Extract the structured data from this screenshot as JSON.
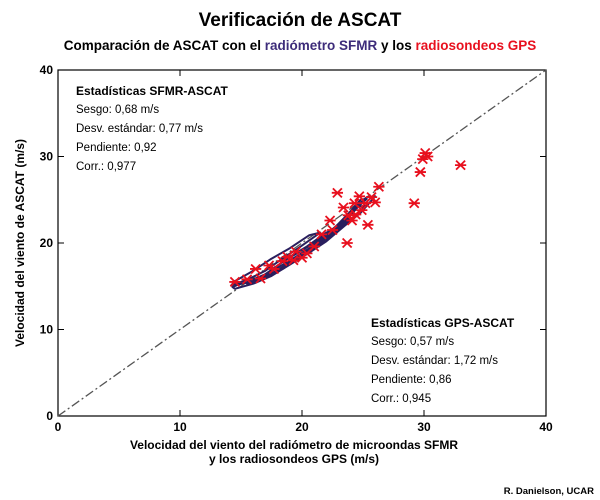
{
  "header": {
    "title": "Verificación de ASCAT",
    "subtitle_part1": "Comparación de ASCAT con el ",
    "subtitle_part2": "radiómetro SFMR",
    "subtitle_part3": " y los ",
    "subtitle_part4": "radiosondeos GPS",
    "color_part2": "#3d2c7a",
    "color_part4": "#e8101e"
  },
  "credit": "R. Danielson, UCAR",
  "stats_sfmr": {
    "title": "Estadísticas SFMR-ASCAT",
    "lines": [
      "Sesgo: 0,68 m/s",
      "Desv. estándar: 0,77 m/s",
      "Pendiente: 0,92",
      "Corr.: 0,977"
    ]
  },
  "stats_gps": {
    "title": "Estadísticas GPS-ASCAT",
    "lines": [
      "Sesgo: 0,57 m/s",
      "Desv. estándar: 1,72 m/s",
      "Pendiente: 0,86",
      "Corr.: 0,945"
    ]
  },
  "chart_data": {
    "type": "scatter",
    "xlabel_line1": "Velocidad del viento del radiómetro de microondas SFMR",
    "xlabel_line2": "y los radiosondeos GPS (m/s)",
    "ylabel": "Velocidad del viento de ASCAT (m/s)",
    "xlim": [
      0,
      40
    ],
    "ylim": [
      0,
      40
    ],
    "xticks": [
      0,
      10,
      20,
      30,
      40
    ],
    "yticks": [
      0,
      10,
      20,
      30,
      40
    ],
    "grid": false,
    "reference_line": {
      "x": [
        0,
        40
      ],
      "y": [
        0,
        40
      ],
      "style": "dash-dot",
      "color": "#555555"
    },
    "series": [
      {
        "marker": "contour",
        "color": "#2a1f5e",
        "contours": [
          [
            [
              14.5,
              14.7
            ],
            [
              16,
              15.3
            ],
            [
              17.5,
              16.2
            ],
            [
              19,
              17.5
            ],
            [
              20.5,
              18.8
            ],
            [
              22,
              20.2
            ],
            [
              23.5,
              22
            ],
            [
              24.8,
              23.5
            ],
            [
              25.5,
              24.6
            ],
            [
              26,
              25.4
            ],
            [
              25.3,
              25.3
            ],
            [
              24,
              23.6
            ],
            [
              22.6,
              21.4
            ],
            [
              21,
              19.6
            ],
            [
              19.4,
              18.1
            ],
            [
              17.8,
              16.7
            ],
            [
              16.2,
              15.7
            ],
            [
              14.8,
              15.2
            ],
            [
              14.3,
              14.9
            ]
          ],
          [
            [
              15.5,
              15.3
            ],
            [
              17,
              15.9
            ],
            [
              18.6,
              17.3
            ],
            [
              20.2,
              18.8
            ],
            [
              21.8,
              20.3
            ],
            [
              23.2,
              21.8
            ],
            [
              24.4,
              23.2
            ],
            [
              25.2,
              24.3
            ],
            [
              24.6,
              24.2
            ],
            [
              23.4,
              22.5
            ],
            [
              22,
              20.8
            ],
            [
              20.4,
              19.2
            ],
            [
              18.8,
              17.8
            ],
            [
              17.2,
              16.5
            ],
            [
              15.8,
              15.7
            ],
            [
              15.4,
              15.4
            ]
          ],
          [
            [
              16.8,
              15.9
            ],
            [
              18.4,
              17
            ],
            [
              20,
              18.5
            ],
            [
              21.6,
              20
            ],
            [
              23,
              21.6
            ],
            [
              24,
              22.9
            ],
            [
              23.2,
              22.4
            ],
            [
              21.8,
              20.8
            ],
            [
              20.2,
              19.3
            ],
            [
              18.6,
              18
            ],
            [
              17.2,
              16.6
            ],
            [
              16.7,
              16.1
            ]
          ],
          [
            [
              18.6,
              17.6
            ],
            [
              20.2,
              18.7
            ],
            [
              21.8,
              20.3
            ],
            [
              23,
              21.8
            ],
            [
              22,
              21.2
            ],
            [
              20.4,
              19.6
            ],
            [
              19,
              18.4
            ],
            [
              18.5,
              17.9
            ]
          ],
          [
            [
              22.4,
              20.9
            ],
            [
              23.6,
              22.6
            ],
            [
              24.6,
              24.2
            ],
            [
              25.3,
              25.1
            ],
            [
              24.8,
              25
            ],
            [
              23.8,
              23.4
            ],
            [
              22.7,
              21.8
            ],
            [
              22.2,
              21.2
            ]
          ],
          [
            [
              14.2,
              15.1
            ],
            [
              15.6,
              15.8
            ],
            [
              17,
              16.8
            ],
            [
              18.5,
              18.3
            ],
            [
              20,
              19.7
            ],
            [
              21.5,
              21.2
            ],
            [
              20.6,
              20.9
            ],
            [
              19,
              19.4
            ],
            [
              17.4,
              18.1
            ],
            [
              15.9,
              16.7
            ],
            [
              14.5,
              15.6
            ]
          ]
        ]
      },
      {
        "marker": "x-star",
        "color": "#e8101e",
        "points": [
          [
            14.5,
            15.5
          ],
          [
            15.5,
            15.8
          ],
          [
            16.2,
            17
          ],
          [
            16.6,
            15.9
          ],
          [
            17.3,
            17.4
          ],
          [
            17.7,
            17
          ],
          [
            18.4,
            17.9
          ],
          [
            18.8,
            18.4
          ],
          [
            19.3,
            18
          ],
          [
            19.5,
            19
          ],
          [
            20,
            18.3
          ],
          [
            20.4,
            18.8
          ],
          [
            21,
            19.6
          ],
          [
            21.6,
            21
          ],
          [
            22.5,
            21.5
          ],
          [
            22.3,
            22.6
          ],
          [
            22.9,
            25.8
          ],
          [
            23.4,
            24.1
          ],
          [
            23.8,
            23.2
          ],
          [
            23.7,
            20
          ],
          [
            24.1,
            22.6
          ],
          [
            24.3,
            24.6
          ],
          [
            24.7,
            25.4
          ],
          [
            24.9,
            23.8
          ],
          [
            25.2,
            24.6
          ],
          [
            25.7,
            25.3
          ],
          [
            26.3,
            26.5
          ],
          [
            26,
            24.7
          ],
          [
            25.4,
            22.1
          ],
          [
            24.4,
            23.3
          ],
          [
            29.2,
            24.6
          ],
          [
            29.7,
            28.2
          ],
          [
            29.9,
            29.7
          ],
          [
            30.1,
            30.4
          ],
          [
            30.3,
            30
          ],
          [
            33,
            29
          ]
        ]
      }
    ]
  }
}
